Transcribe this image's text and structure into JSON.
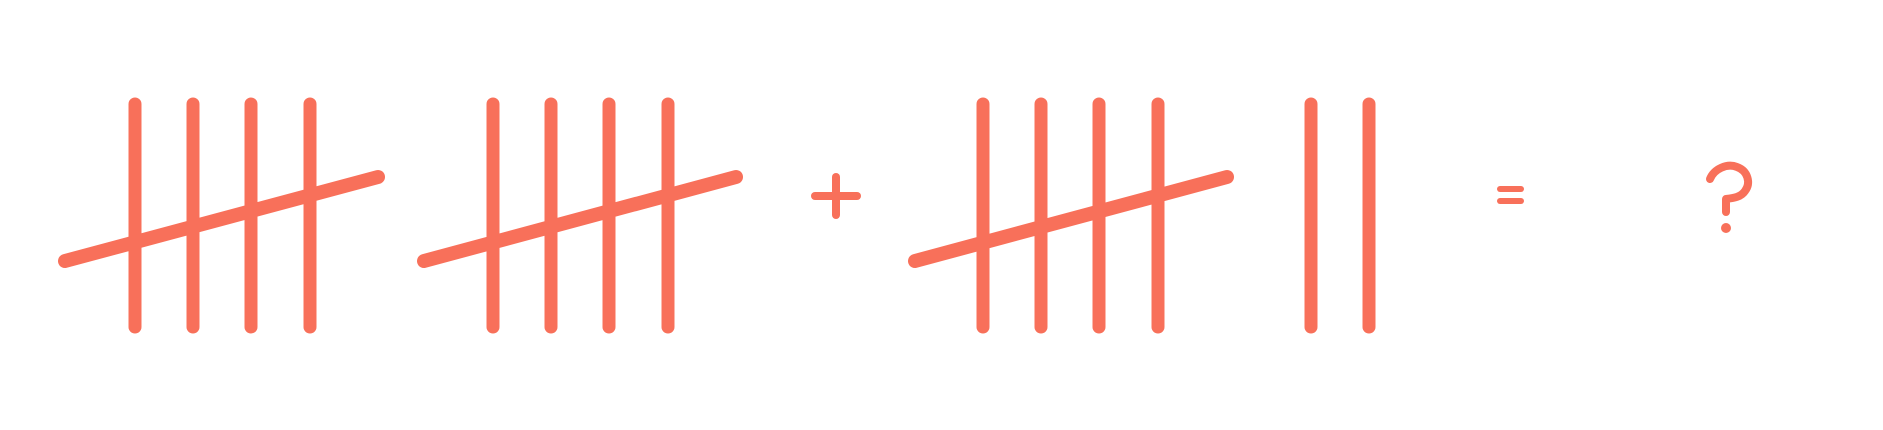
{
  "puzzle": {
    "operator_plus": "+",
    "operator_equals": "=",
    "answer": "?",
    "color": "#F8705A",
    "groups": [
      {
        "role": "addend-1-part-1",
        "strokes": 5
      },
      {
        "role": "addend-1-part-2",
        "strokes": 5
      },
      {
        "role": "addend-2-part-1",
        "strokes": 5
      },
      {
        "role": "addend-2-part-2",
        "strokes": 2
      }
    ]
  }
}
